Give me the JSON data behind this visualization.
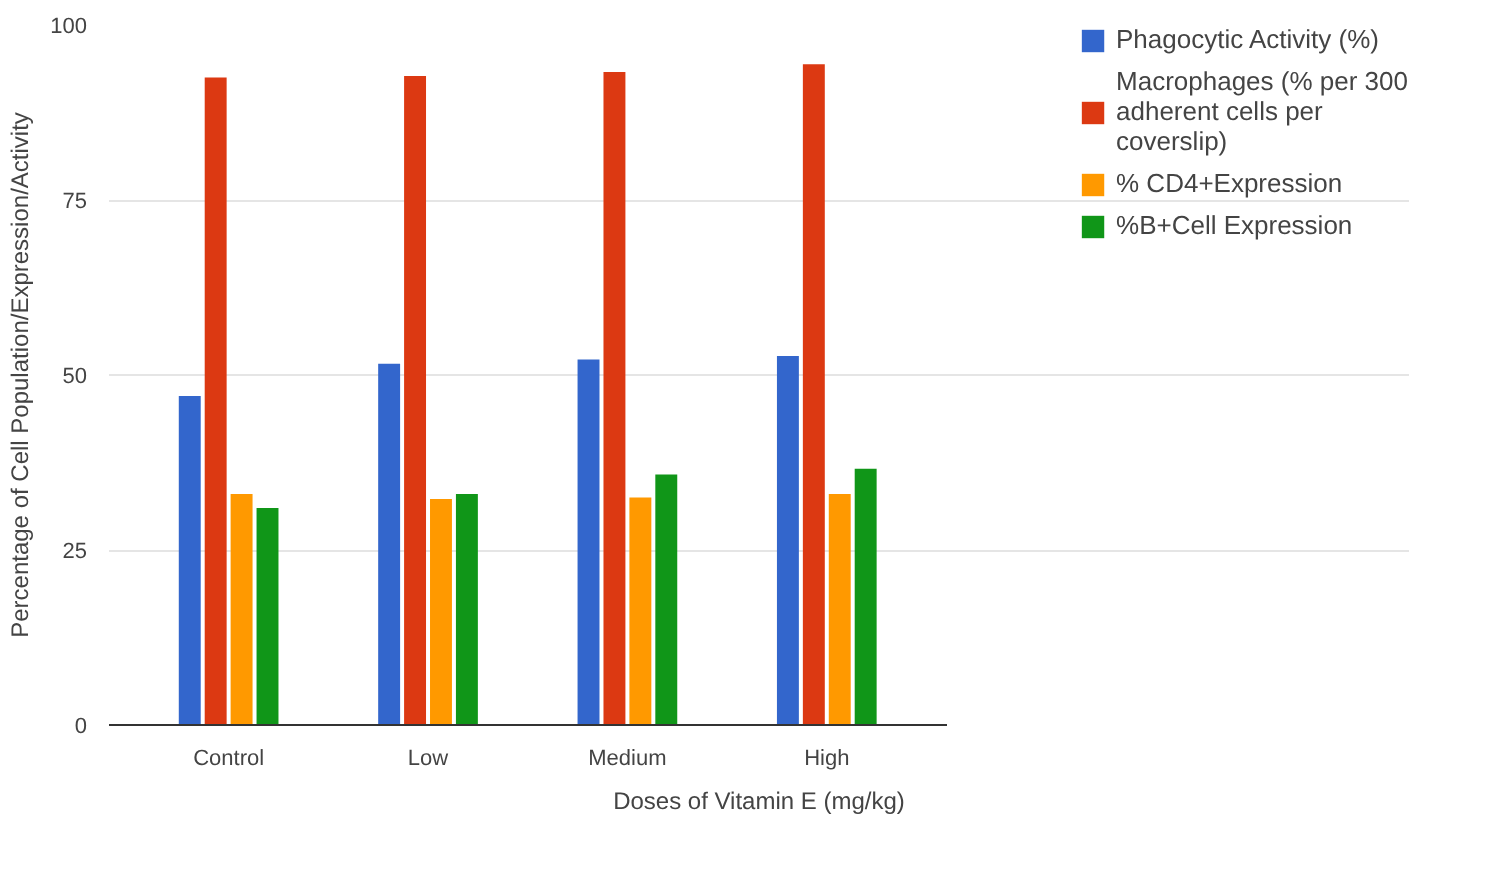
{
  "chart_data": {
    "type": "bar",
    "xlabel": "Doses of Vitamin E (mg/kg)",
    "ylabel": "Percentage of Cell Population/Expression/Activity",
    "categories": [
      "Control",
      "Low",
      "Medium",
      "High"
    ],
    "series": [
      {
        "name": "Phagocytic Activity (%)",
        "color": "#3366cc",
        "values": [
          47.0,
          51.6,
          52.2,
          52.7
        ]
      },
      {
        "name": "Macrophages (% per 300 adherent cells per coverslip)",
        "color": "#dc3912",
        "values": [
          92.5,
          92.7,
          93.3,
          94.4
        ]
      },
      {
        "name": "% CD4+Expression",
        "color": "#ff9900",
        "values": [
          33.0,
          32.3,
          32.5,
          33.0
        ]
      },
      {
        "name": "%B+Cell Expression",
        "color": "#109618",
        "values": [
          31.0,
          33.0,
          35.8,
          36.6
        ]
      }
    ],
    "ylim": [
      0,
      100
    ],
    "yticks": [
      0,
      25,
      50,
      75,
      100
    ],
    "grid": "y",
    "legend": "top right"
  }
}
